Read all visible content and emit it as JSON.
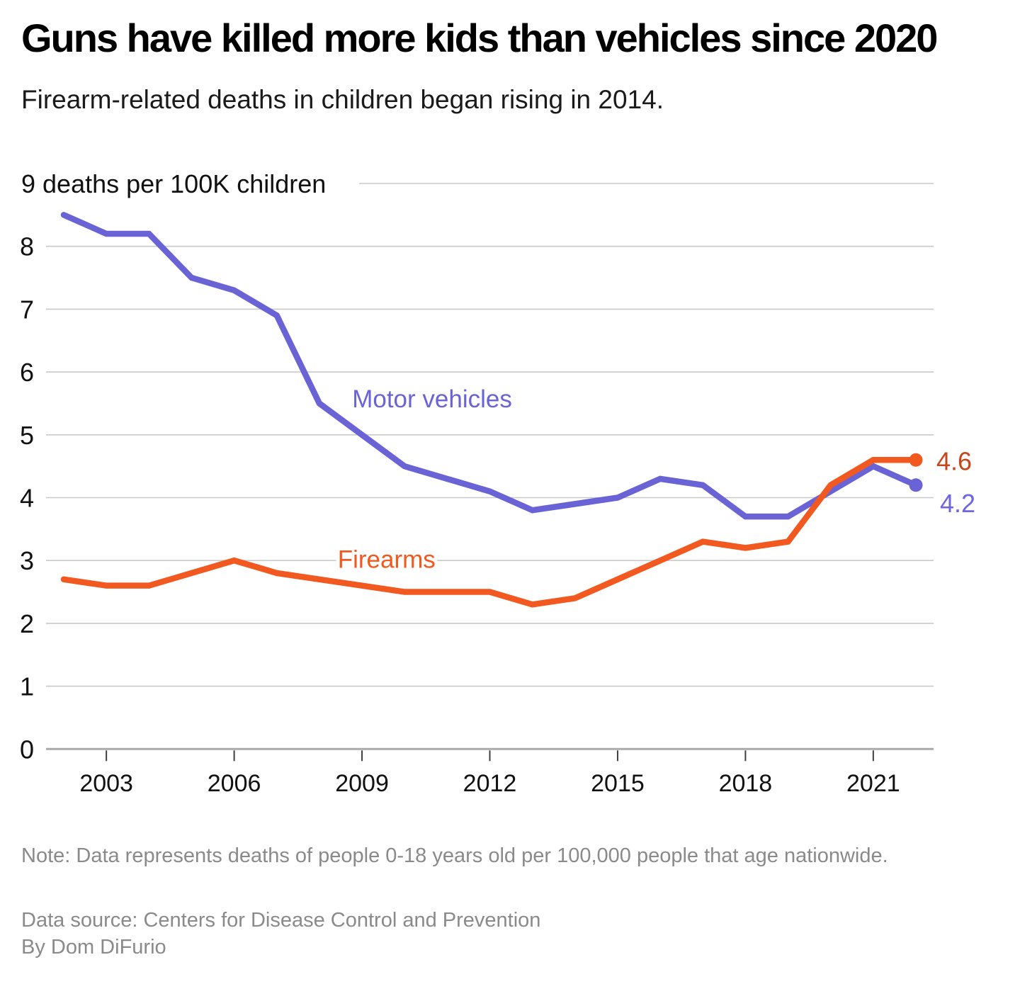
{
  "header": {
    "title": "Guns have killed more kids than vehicles since 2020",
    "subtitle": "Firearm-related deaths in children began rising in 2014."
  },
  "chart_data": {
    "type": "line",
    "x": [
      2002,
      2003,
      2004,
      2005,
      2006,
      2007,
      2008,
      2009,
      2010,
      2011,
      2012,
      2013,
      2014,
      2015,
      2016,
      2017,
      2018,
      2019,
      2020,
      2021,
      2022
    ],
    "series": [
      {
        "name": "Motor vehicles",
        "color": "#6a63d6",
        "values": [
          8.5,
          8.2,
          8.2,
          7.5,
          7.3,
          6.9,
          5.5,
          5.0,
          4.5,
          4.3,
          4.1,
          3.8,
          3.9,
          4.0,
          4.3,
          4.2,
          3.7,
          3.7,
          4.1,
          4.5,
          4.2
        ],
        "end_label": "4.2",
        "end_label_color": "#6e65e2",
        "label_pos": {
          "x": 2008.77,
          "y": 5.57
        },
        "end_label_offset": {
          "dx": 34,
          "dy": 38
        }
      },
      {
        "name": "Firearms",
        "color": "#f25920",
        "values": [
          2.7,
          2.6,
          2.6,
          2.8,
          3.0,
          2.8,
          2.7,
          2.6,
          2.5,
          2.5,
          2.5,
          2.3,
          2.4,
          2.7,
          3.0,
          3.3,
          3.2,
          3.3,
          4.2,
          4.6,
          4.6
        ],
        "end_label": "4.6",
        "end_label_color": "#c7451a",
        "label_pos": {
          "x": 2008.43,
          "y": 3.02
        },
        "end_label_offset": {
          "dx": 29,
          "dy": 14
        }
      }
    ],
    "y_axis": {
      "ticks": [
        0,
        1,
        2,
        3,
        4,
        5,
        6,
        7,
        8
      ],
      "top_value": 9,
      "top_label": "9 deaths per 100K children",
      "range": [
        0,
        9
      ],
      "grid": true
    },
    "x_axis": {
      "ticks": [
        2003,
        2006,
        2009,
        2012,
        2015,
        2018,
        2021
      ]
    },
    "title": "Guns have killed more kids than vehicles since 2020",
    "xlabel": "",
    "ylabel": "deaths per 100K children"
  },
  "footer": {
    "note": "Note: Data represents deaths of people 0-18 years old per 100,000 people that age nationwide.",
    "source": "Data source: Centers for Disease Control and Prevention",
    "byline": "By Dom DiFurio"
  }
}
